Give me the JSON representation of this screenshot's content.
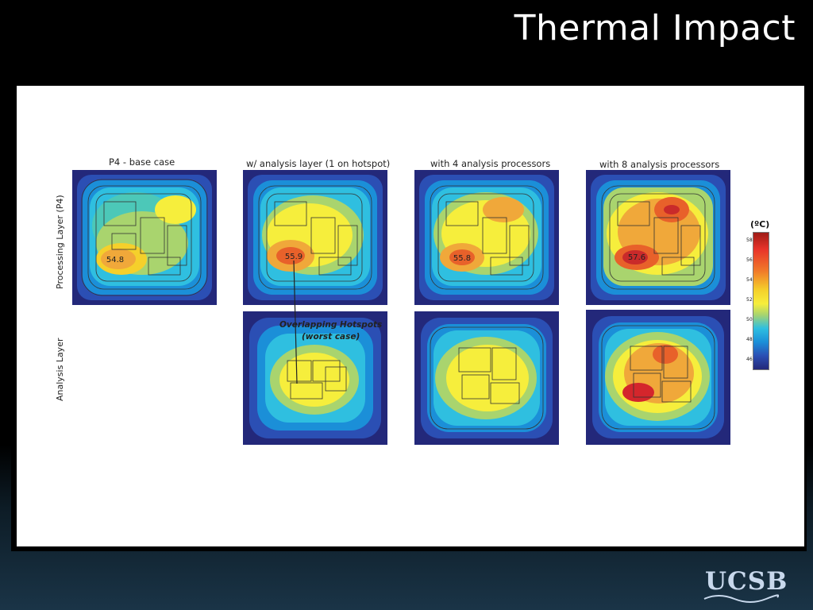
{
  "slide": {
    "title": "Thermal Impact",
    "logo_text": "UCSB"
  },
  "columns": [
    {
      "title": "P4 - base case",
      "peak_label": "54.8"
    },
    {
      "title": "w/ analysis layer (1 on hotspot)",
      "peak_label": "55.9"
    },
    {
      "title": "with 4 analysis processors",
      "peak_label": "55.8"
    },
    {
      "title": "with 8 analysis processors",
      "peak_label": "57.6"
    }
  ],
  "rows": [
    {
      "label": "Processing Layer (P4)"
    },
    {
      "label": "Analysis Layer"
    }
  ],
  "annotation": {
    "line1": "Overlapping Hotspots",
    "line2": "(worst case)"
  },
  "legend": {
    "title": "(ºC)",
    "ticks": [
      "58",
      "56",
      "54",
      "52",
      "50",
      "48",
      "46"
    ]
  },
  "colors": {
    "hot": "#d4262c",
    "warm": "#f07b2b",
    "mid": "#f5e83a",
    "cool": "#2fbfe0",
    "cold": "#1f3a9e"
  }
}
